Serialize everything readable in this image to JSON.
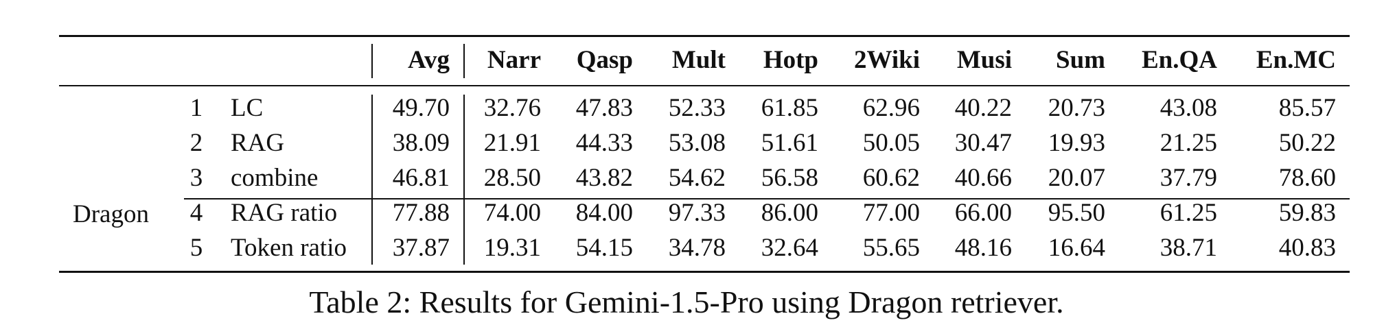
{
  "table": {
    "group_label": "Dragon",
    "columns": [
      "Avg",
      "Narr",
      "Qasp",
      "Mult",
      "Hotp",
      "2Wiki",
      "Musi",
      "Sum",
      "En.QA",
      "En.MC"
    ],
    "rows": [
      {
        "num": "1",
        "method": "LC",
        "values": [
          "49.70",
          "32.76",
          "47.83",
          "52.33",
          "61.85",
          "62.96",
          "40.22",
          "20.73",
          "43.08",
          "85.57"
        ]
      },
      {
        "num": "2",
        "method": "RAG",
        "values": [
          "38.09",
          "21.91",
          "44.33",
          "53.08",
          "51.61",
          "50.05",
          "30.47",
          "19.93",
          "21.25",
          "50.22"
        ]
      },
      {
        "num": "3",
        "method": "combine",
        "values": [
          "46.81",
          "28.50",
          "43.82",
          "54.62",
          "56.58",
          "60.62",
          "40.66",
          "20.07",
          "37.79",
          "78.60"
        ]
      },
      {
        "num": "4",
        "method": "RAG ratio",
        "values": [
          "77.88",
          "74.00",
          "84.00",
          "97.33",
          "86.00",
          "77.00",
          "66.00",
          "95.50",
          "61.25",
          "59.83"
        ]
      },
      {
        "num": "5",
        "method": "Token ratio",
        "values": [
          "37.87",
          "19.31",
          "54.15",
          "34.78",
          "32.64",
          "55.65",
          "48.16",
          "16.64",
          "38.71",
          "40.83"
        ]
      }
    ]
  },
  "caption": "Table 2: Results for Gemini-1.5-Pro using Dragon retriever."
}
